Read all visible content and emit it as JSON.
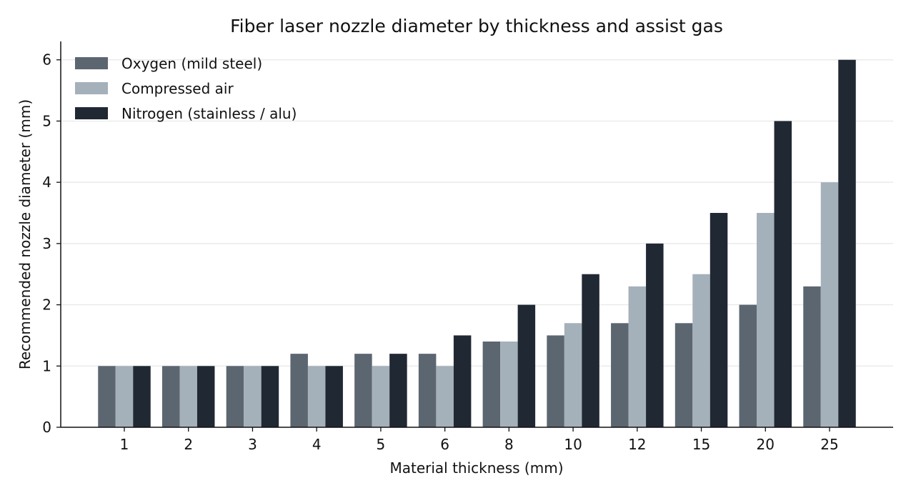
{
  "chart_data": {
    "type": "bar",
    "title": "Fiber laser nozzle diameter by thickness and assist gas",
    "xlabel": "Material thickness (mm)",
    "ylabel": "Recommended nozzle diameter (mm)",
    "categories": [
      "1",
      "2",
      "3",
      "4",
      "5",
      "6",
      "8",
      "10",
      "12",
      "15",
      "20",
      "25"
    ],
    "ylim": [
      0,
      6.3
    ],
    "yticks": [
      0,
      1,
      2,
      3,
      4,
      5,
      6
    ],
    "grid": "horizontal",
    "legend_position": "top-left",
    "series": [
      {
        "name": "Oxygen (mild steel)",
        "color": "#5c6670",
        "values": [
          1.0,
          1.0,
          1.0,
          1.2,
          1.2,
          1.2,
          1.4,
          1.5,
          1.7,
          1.7,
          2.0,
          2.3
        ]
      },
      {
        "name": "Compressed air",
        "color": "#a4b0ba",
        "values": [
          1.0,
          1.0,
          1.0,
          1.0,
          1.0,
          1.0,
          1.4,
          1.7,
          2.3,
          2.5,
          3.5,
          4.0
        ]
      },
      {
        "name": "Nitrogen (stainless / alu)",
        "color": "#202833",
        "values": [
          1.0,
          1.0,
          1.0,
          1.0,
          1.2,
          1.5,
          2.0,
          2.5,
          3.0,
          3.5,
          5.0,
          6.0
        ]
      }
    ]
  }
}
